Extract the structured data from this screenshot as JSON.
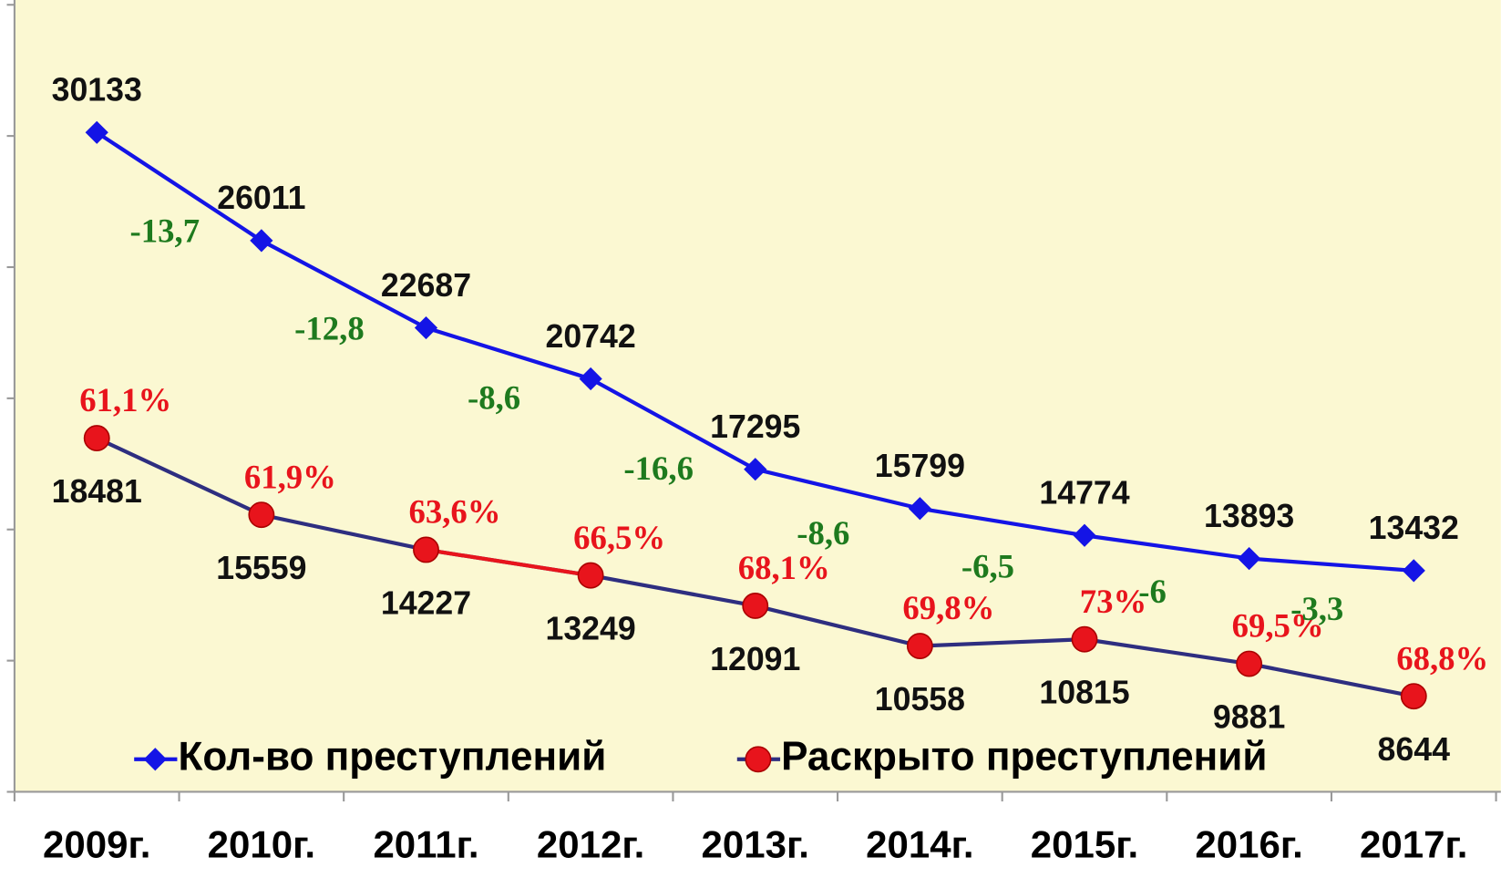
{
  "chart_data": {
    "type": "line",
    "categories": [
      "2009г.",
      "2010г.",
      "2011г.",
      "2012г.",
      "2013г.",
      "2014г.",
      "2015г.",
      "2016г.",
      "2017г."
    ],
    "series": [
      {
        "name": "Кол-во преступлений",
        "color": "#1414e6",
        "marker": "diamond",
        "values": [
          30133,
          26011,
          22687,
          20742,
          17295,
          15799,
          14774,
          13893,
          13432
        ]
      },
      {
        "name": "Раскрыто преступлений",
        "color": "#2e2e80",
        "marker": "circle",
        "marker_color": "#e8141c",
        "values": [
          18481,
          15559,
          14227,
          13249,
          12091,
          10558,
          10815,
          9881,
          8644
        ],
        "highlight": {
          "from": 2,
          "to": 3,
          "color": "#e8141c"
        }
      }
    ],
    "rate": {
      "color": "#e8141c",
      "values": [
        61.1,
        61.9,
        63.6,
        66.5,
        68.1,
        69.8,
        73,
        69.5,
        68.8
      ],
      "labels": [
        "61,1%",
        "61,9%",
        "63,6%",
        "66,5%",
        "68,1%",
        "69,8%",
        "73%",
        "69,5%",
        "68,8%"
      ]
    },
    "change": {
      "color": "#1e7a1e",
      "values": [
        -13.7,
        -12.8,
        -8.6,
        -16.6,
        -8.6,
        -6.5,
        -6,
        -3.3
      ],
      "labels": [
        "-13,7",
        "-12,8",
        "-8,6",
        "-16,6",
        "-8,6",
        "-6,5",
        "-6",
        "-3,3"
      ]
    },
    "ylim": [
      5000,
      35000
    ],
    "yticks": [
      5000,
      10000,
      15000,
      20000,
      25000,
      30000,
      35000
    ],
    "grid": false
  }
}
